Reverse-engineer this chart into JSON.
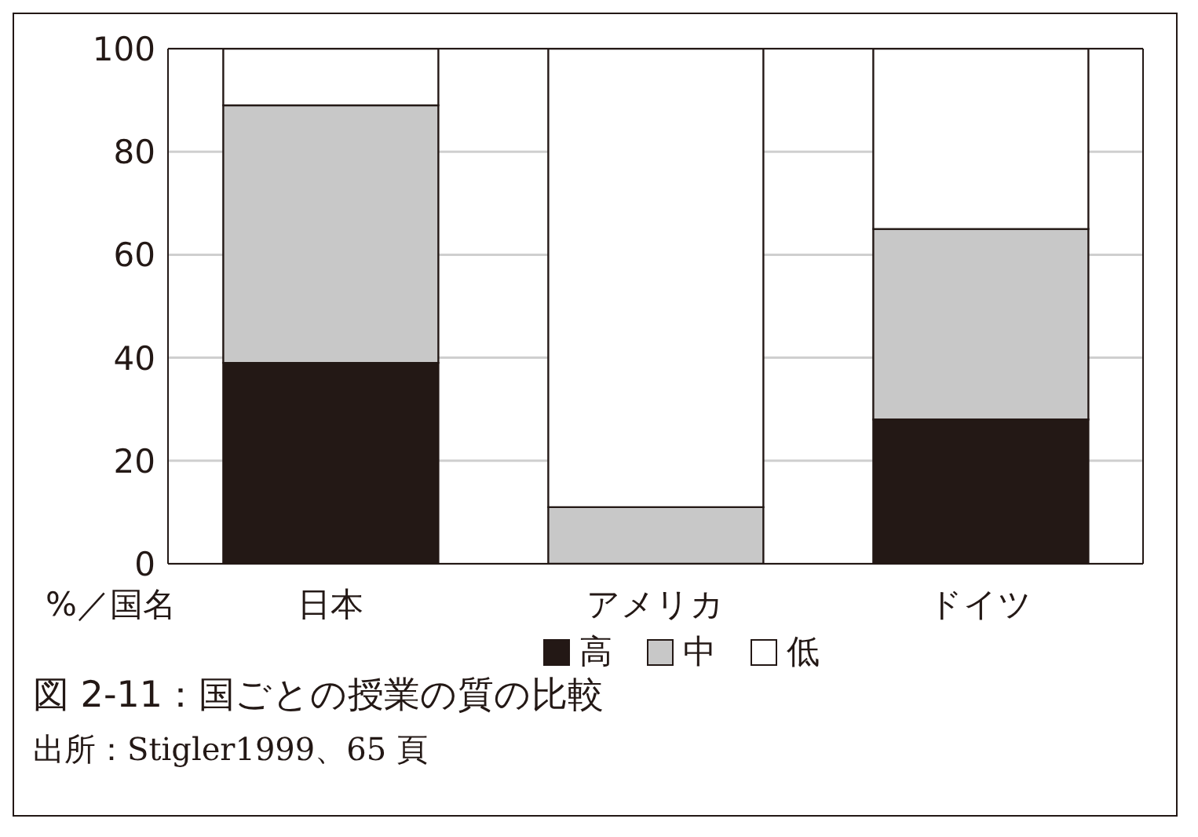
{
  "chart_data": {
    "type": "bar",
    "title": "図 2-11：国ごとの授業の質の比較",
    "xlabel": "%／国名",
    "annotations": [
      "出所：Stigler1999、65 頁"
    ],
    "categories": [
      "日本",
      "アメリカ",
      "ドイツ"
    ],
    "series": [
      {
        "name": "高",
        "color": "#231815",
        "values": [
          39,
          0,
          28
        ]
      },
      {
        "name": "中",
        "color": "#c8c8c8",
        "values": [
          50,
          11,
          37
        ]
      },
      {
        "name": "低",
        "color": "#ffffff",
        "values": [
          11,
          89,
          35
        ]
      }
    ],
    "stacked": true,
    "ylim": [
      0,
      100
    ],
    "yticks": [
      0,
      20,
      40,
      60,
      80,
      100
    ],
    "grid": "y",
    "legend": "bottom"
  }
}
